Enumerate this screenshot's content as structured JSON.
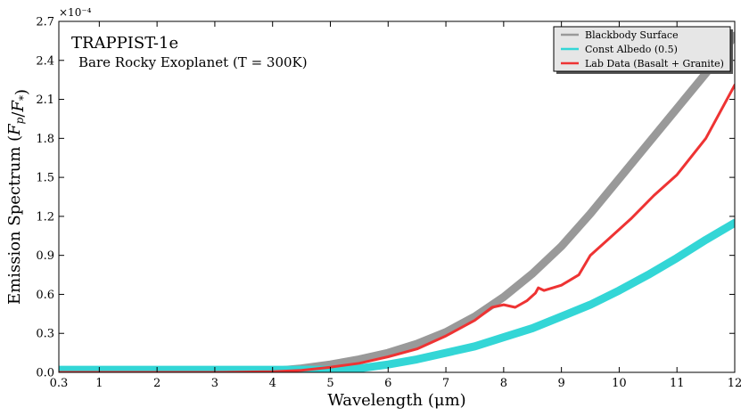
{
  "chart_data": {
    "type": "line",
    "xlabel": "Wavelength (μm)",
    "ylabel": "Emission Spectrum (F_p/F_*)",
    "y_multiplier": "×10⁻⁴",
    "xlim": [
      0.3,
      12
    ],
    "ylim": [
      0,
      2.7
    ],
    "x_ticks": [
      0.3,
      1,
      2,
      3,
      4,
      5,
      6,
      7,
      8,
      9,
      10,
      11,
      12
    ],
    "x_tick_labels": [
      "0.3",
      "1",
      "2",
      "3",
      "4",
      "5",
      "6",
      "7",
      "8",
      "9",
      "10",
      "11",
      "12"
    ],
    "y_ticks": [
      0,
      0.3,
      0.6,
      0.9,
      1.2,
      1.5,
      1.8,
      2.1,
      2.4,
      2.7
    ],
    "y_tick_labels": [
      "0.0",
      "0.3",
      "0.6",
      "0.9",
      "1.2",
      "1.5",
      "1.8",
      "2.1",
      "2.4",
      "2.7"
    ],
    "annotations": {
      "title": "TRAPPIST-1e",
      "subtitle": "Bare Rocky Exoplanet (T = 300K)"
    },
    "legend_position": "top-right",
    "series": [
      {
        "name": "Blackbody Surface",
        "color": "#999999",
        "x": [
          0.3,
          3,
          4,
          4.5,
          5,
          5.5,
          6,
          6.5,
          7,
          7.5,
          8,
          8.5,
          9,
          9.5,
          10,
          10.5,
          11,
          11.5,
          12
        ],
        "values": [
          0.0,
          0.0,
          0.01,
          0.03,
          0.06,
          0.1,
          0.15,
          0.22,
          0.31,
          0.43,
          0.58,
          0.76,
          0.97,
          1.22,
          1.49,
          1.76,
          2.03,
          2.3,
          2.59
        ]
      },
      {
        "name": "Const Albedo (0.5)",
        "color": "#33d6d6",
        "x": [
          0.3,
          3,
          4,
          5,
          5.5,
          6,
          6.5,
          7,
          7.5,
          8,
          8.5,
          9,
          9.5,
          10,
          10.5,
          11,
          11.5,
          12
        ],
        "values": [
          0.02,
          0.02,
          0.02,
          0.02,
          0.03,
          0.06,
          0.1,
          0.15,
          0.2,
          0.27,
          0.34,
          0.43,
          0.52,
          0.63,
          0.75,
          0.88,
          1.02,
          1.15
        ]
      },
      {
        "name": "Lab Data (Basalt + Granite)",
        "color": "#ee3333",
        "x": [
          0.3,
          3,
          4,
          4.5,
          5,
          5.5,
          6,
          6.5,
          7,
          7.5,
          7.8,
          8.0,
          8.2,
          8.4,
          8.55,
          8.6,
          8.7,
          9.0,
          9.3,
          9.5,
          9.8,
          10.2,
          10.6,
          11.0,
          11.5,
          12
        ],
        "values": [
          0.0,
          0.0,
          0.005,
          0.015,
          0.04,
          0.07,
          0.12,
          0.18,
          0.28,
          0.4,
          0.5,
          0.52,
          0.5,
          0.55,
          0.61,
          0.65,
          0.63,
          0.67,
          0.75,
          0.9,
          1.02,
          1.18,
          1.36,
          1.52,
          1.8,
          2.21
        ]
      }
    ]
  }
}
